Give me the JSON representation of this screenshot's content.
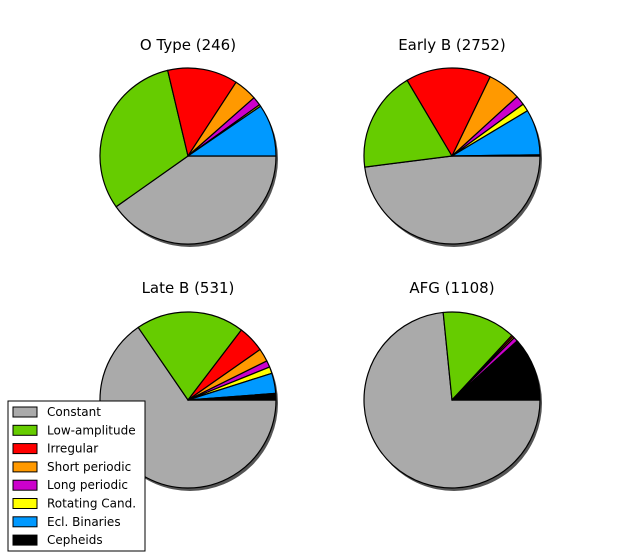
{
  "chart_data": {
    "type": "pie",
    "start_angle_deg": 0,
    "direction": "clockwise",
    "categories": [
      "Constant",
      "Low-amplitude",
      "Irregular",
      "Short periodic",
      "Long periodic",
      "Rotating Cand.",
      "Ecl. Binaries",
      "Cepheids"
    ],
    "colors": [
      "#aaaaaa",
      "#66cc00",
      "#ff0000",
      "#ff9900",
      "#cc00cc",
      "#ffff00",
      "#0099ff",
      "#000000"
    ],
    "legend_placement": "lower-left",
    "charts": [
      {
        "title": "O Type (246)",
        "values": [
          37.4,
          28.9,
          12.0,
          4.0,
          1.5,
          0.3,
          8.9,
          0.0
        ]
      },
      {
        "title": "Early B (2752)",
        "values": [
          44.1,
          17.0,
          14.4,
          5.6,
          1.6,
          1.3,
          7.7,
          0.2
        ]
      },
      {
        "title": "Late B (531)",
        "values": [
          65.3,
          19.9,
          4.9,
          2.4,
          1.2,
          1.2,
          3.7,
          1.2
        ]
      },
      {
        "title": "AFG (1108)",
        "values": [
          73.4,
          13.5,
          0.3,
          0.3,
          0.8,
          0.0,
          0.2,
          11.5
        ]
      }
    ]
  }
}
